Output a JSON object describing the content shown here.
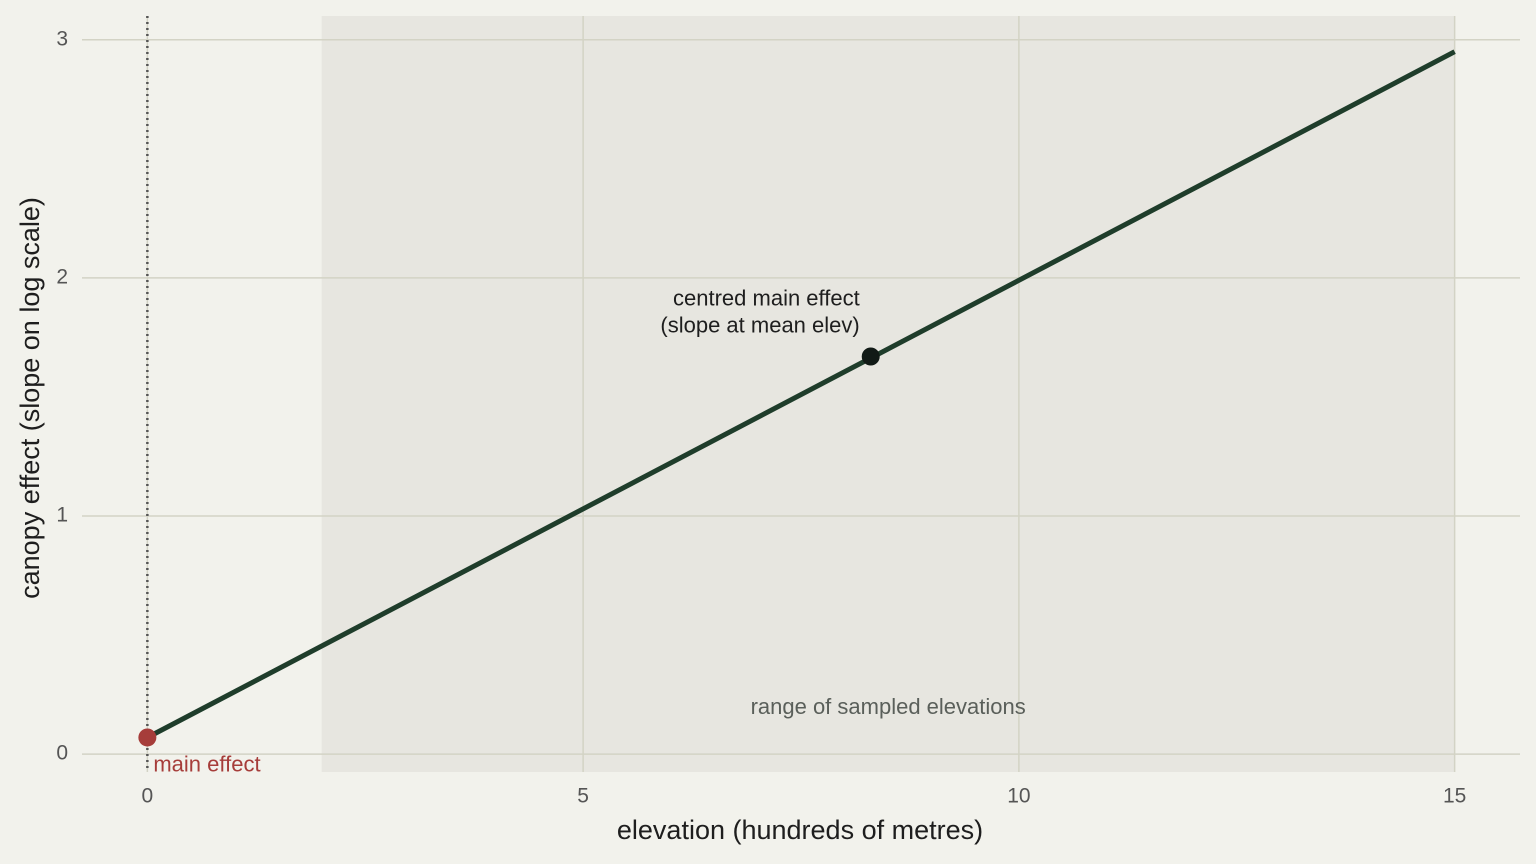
{
  "chart_data": {
    "type": "line",
    "x_label": "elevation (hundreds of metres)",
    "y_label": "canopy effect (slope on log scale)",
    "x": [
      0,
      15
    ],
    "values": [
      0.07,
      2.95
    ],
    "color": "#1f3d2b",
    "xlim": [
      -0.75,
      15.75
    ],
    "ylim": [
      -0.075,
      3.1
    ],
    "xticks": [
      0,
      5,
      10,
      15
    ],
    "yticks": [
      0,
      1,
      2,
      3
    ],
    "grid": true,
    "vline": 0,
    "band": {
      "x": [
        2,
        15
      ],
      "label": "range of sampled elevations",
      "color": "#e7e6e0"
    },
    "points": [
      {
        "x": 0,
        "y": 0.07,
        "color": "#a63d3a",
        "label": [
          "main effect"
        ]
      },
      {
        "x": 8.3,
        "y": 1.67,
        "color": "#111a16",
        "label": [
          "centred main effect",
          "(slope at mean elev)"
        ]
      }
    ]
  }
}
